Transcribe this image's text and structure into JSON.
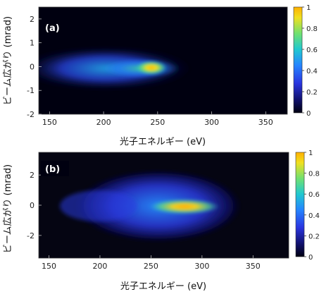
{
  "chart_data": [
    {
      "type": "heatmap",
      "panel_label": "(a)",
      "xlabel": "光子エネルギー (eV)",
      "ylabel": "ビーム広がり (mrad)",
      "xlim": [
        140,
        370
      ],
      "ylim": [
        -2,
        2.5
      ],
      "xticks": [
        150,
        200,
        250,
        300,
        350
      ],
      "yticks": [
        -2,
        -1,
        0,
        1,
        2
      ],
      "colorbar": {
        "min": 0,
        "max": 1,
        "ticks": [
          0,
          0.2,
          0.4,
          0.6,
          0.8,
          1
        ]
      },
      "colormap": [
        "#000010",
        "#10106a",
        "#2a35e0",
        "#2585ff",
        "#20c8d0",
        "#70e070",
        "#f0e020",
        "#ffb000"
      ],
      "distribution": {
        "peak_energy_eV": 247,
        "peak_divergence_mrad": 0.05,
        "energy_extent_eV": [
          140,
          262
        ],
        "divergence_halfwidth_mrad": 0.9
      }
    },
    {
      "type": "heatmap",
      "panel_label": "(b)",
      "xlabel": "光子エネルギー (eV)",
      "ylabel": "ビーム広がり (mrad)",
      "xlim": [
        140,
        385
      ],
      "ylim": [
        -3.5,
        3.5
      ],
      "xticks": [
        150,
        200,
        250,
        300,
        350
      ],
      "yticks": [
        -2,
        0,
        2
      ],
      "colorbar": {
        "min": 0,
        "max": 1,
        "ticks": [
          0,
          0.2,
          0.4,
          0.6,
          0.8,
          1
        ]
      },
      "colormap": [
        "#000010",
        "#10106a",
        "#2a35e0",
        "#2585ff",
        "#20c8d0",
        "#70e070",
        "#f0e020",
        "#ffb000"
      ],
      "distribution": {
        "peak_energy_eV": [
          278,
          298
        ],
        "peak_divergence_mrad": 0,
        "energy_extent_eV": [
          155,
          330
        ],
        "divergence_halfwidth_mrad": 2.2
      }
    }
  ]
}
